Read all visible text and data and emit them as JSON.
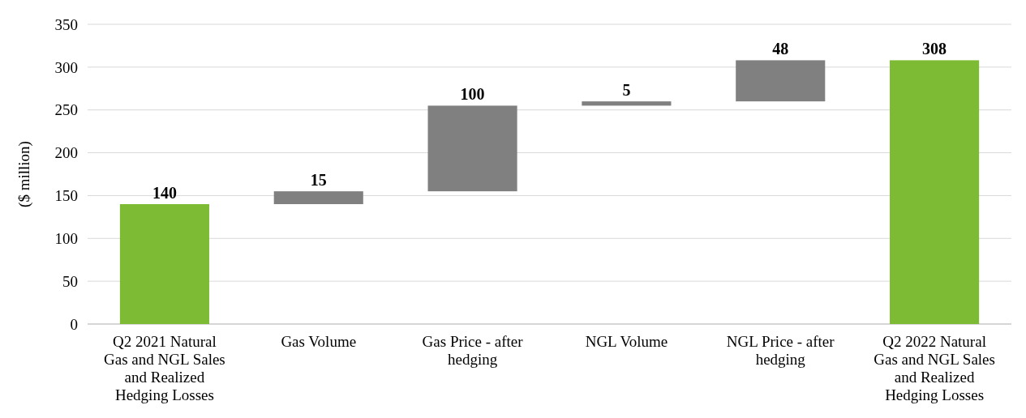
{
  "chart_data": {
    "type": "bar",
    "ylabel": "($ million)",
    "categories": [
      "Q2 2021 Natural Gas and NGL Sales and Realized Hedging Losses",
      "Gas Volume",
      "Gas Price - after hedging",
      "NGL Volume",
      "NGL Price - after hedging",
      "Q2 2022 Natural Gas and NGL Sales and Realized Hedging Losses"
    ],
    "values": [
      140,
      15,
      100,
      5,
      48,
      308
    ],
    "base": [
      0,
      140,
      155,
      255,
      260,
      0
    ],
    "colors": [
      "#7cbb33",
      "#808080",
      "#808080",
      "#808080",
      "#808080",
      "#7cbb33"
    ],
    "ylim": [
      0,
      350
    ],
    "yticks": [
      0,
      50,
      100,
      150,
      200,
      250,
      300,
      350
    ],
    "grid": "y",
    "data_labels": true
  }
}
